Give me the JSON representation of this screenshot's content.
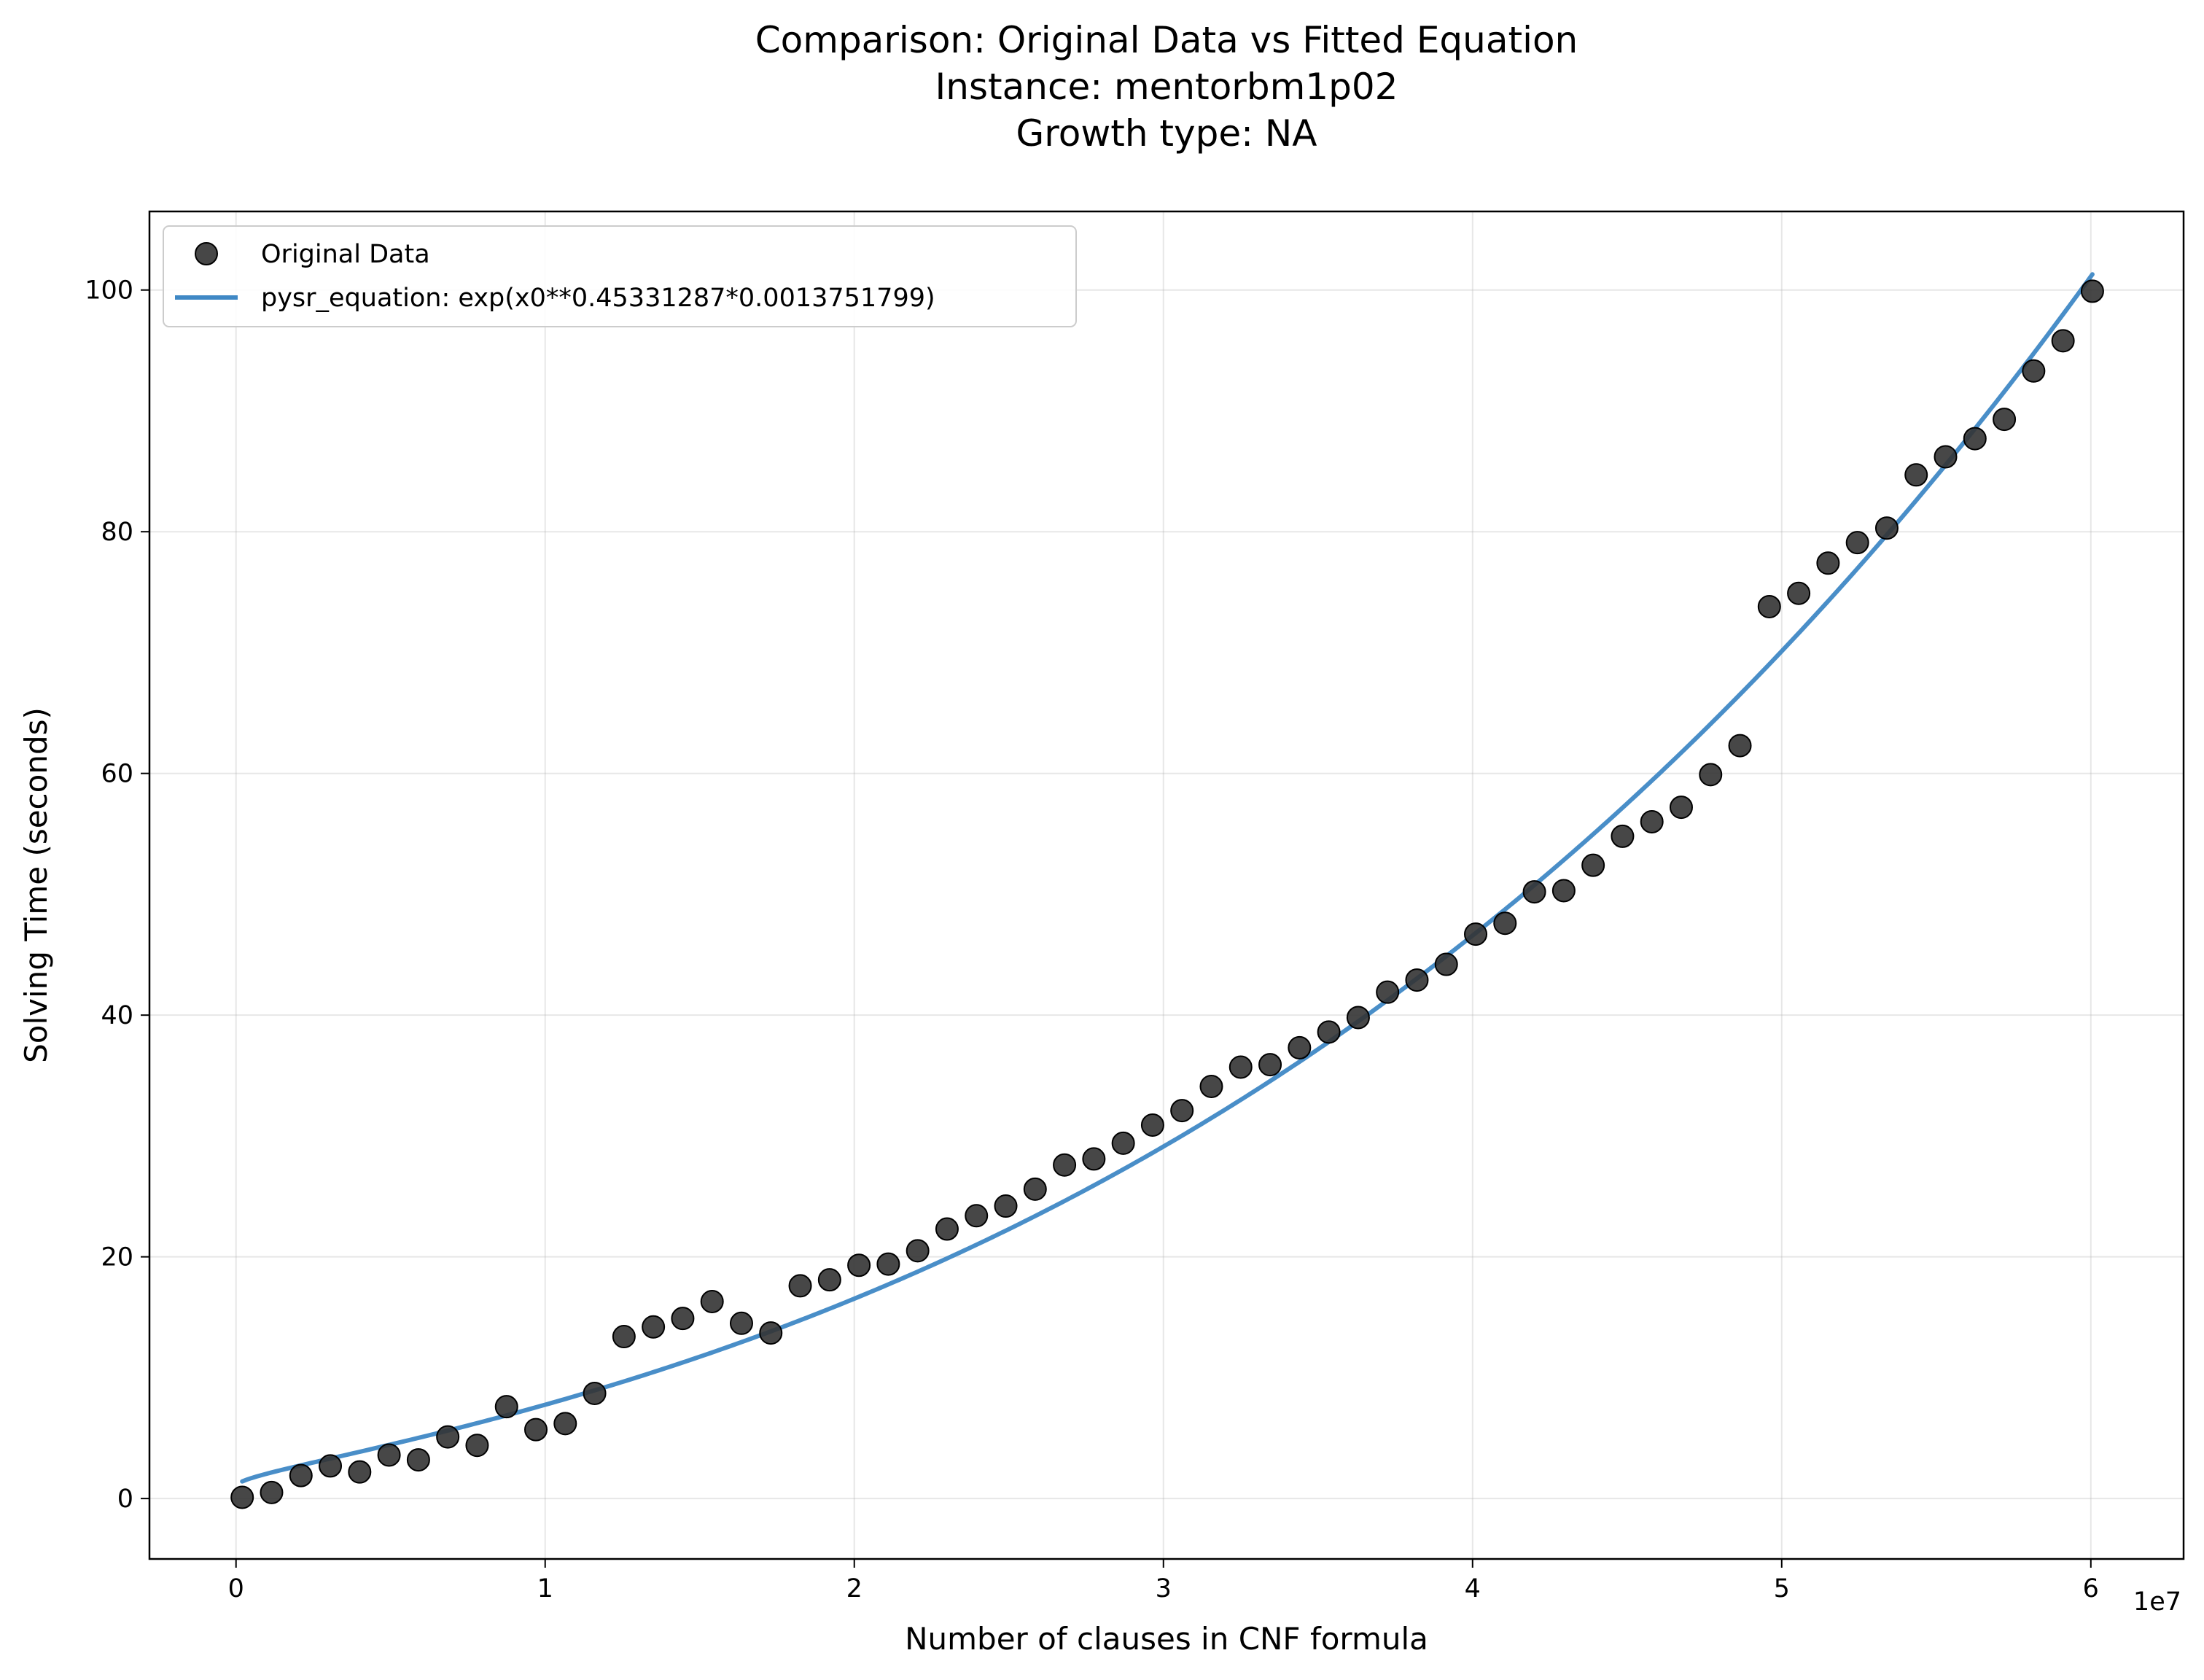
{
  "chart_data": {
    "type": "scatter",
    "title": [
      "Comparison: Original Data vs Fitted Equation",
      "Instance: mentorbm1p02",
      "Growth type: NA"
    ],
    "xlabel": "Number of clauses in CNF formula",
    "ylabel": "Solving Time (seconds)",
    "x_offset_label": "1e7",
    "x_scale": 10000000,
    "xlim": [
      -2800000,
      63000000
    ],
    "ylim": [
      -5,
      106.5
    ],
    "x_ticks": [
      0,
      10000000,
      20000000,
      30000000,
      40000000,
      50000000,
      60000000
    ],
    "x_tick_labels": [
      "0",
      "1",
      "2",
      "3",
      "4",
      "5",
      "6"
    ],
    "y_ticks": [
      0,
      20,
      40,
      60,
      80,
      100
    ],
    "y_tick_labels": [
      "0",
      "20",
      "40",
      "60",
      "80",
      "100"
    ],
    "grid": true,
    "legend_placement": "top-left",
    "colors": {
      "points": "#333333",
      "line": "#3f88c5"
    },
    "series": [
      {
        "name": "Original Data",
        "kind": "scatter",
        "x": [
          200000,
          1150000,
          2100000,
          3050000,
          4000000,
          4950000,
          5900000,
          6850000,
          7800000,
          8750000,
          9700000,
          10650000,
          11600000,
          12550000,
          13500000,
          14450000,
          15400000,
          16350000,
          17300000,
          18250000,
          19200000,
          20150000,
          21100000,
          22050000,
          23000000,
          23950000,
          24900000,
          25850000,
          26800000,
          27750000,
          28700000,
          29650000,
          30600000,
          31550000,
          32500000,
          33450000,
          34400000,
          35350000,
          36300000,
          37250000,
          38200000,
          39150000,
          40100000,
          41050000,
          42000000,
          42950000,
          43900000,
          44850000,
          45800000,
          46750000,
          47700000,
          48650000,
          49600000,
          50550000,
          51500000,
          52450000,
          53400000,
          54350000,
          55300000,
          56250000,
          57200000,
          58150000,
          59100000,
          60050000
        ],
        "y": [
          0.1,
          0.5,
          1.9,
          2.7,
          2.2,
          3.6,
          3.2,
          5.1,
          4.4,
          7.6,
          5.7,
          6.2,
          8.7,
          13.4,
          14.2,
          14.9,
          16.3,
          14.5,
          13.7,
          17.6,
          18.1,
          19.3,
          19.4,
          20.5,
          22.3,
          23.4,
          24.2,
          25.6,
          27.6,
          28.1,
          29.4,
          30.9,
          32.1,
          34.1,
          35.7,
          35.9,
          37.3,
          38.6,
          39.8,
          41.9,
          42.9,
          44.2,
          46.7,
          47.6,
          50.2,
          50.3,
          52.4,
          54.8,
          56.0,
          57.2,
          59.9,
          62.3,
          73.8,
          74.9,
          77.4,
          79.1,
          80.3,
          84.7,
          86.2,
          87.7,
          89.3,
          93.3,
          95.8,
          99.9
        ]
      },
      {
        "name": "pysr_equation: exp(x0**0.45331287*0.0013751799)",
        "kind": "line",
        "equation": {
          "exponent": 0.45331287,
          "coefficient": 0.0013751799
        },
        "x_range": [
          200000,
          60050000
        ]
      }
    ]
  }
}
